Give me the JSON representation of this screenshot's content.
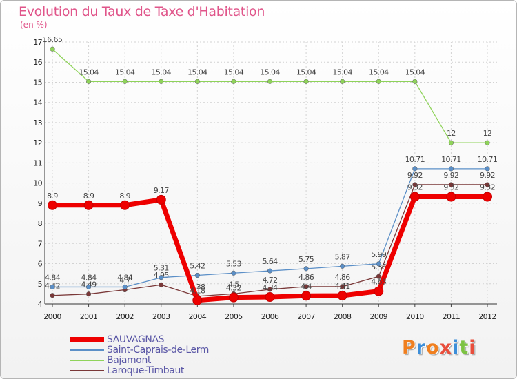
{
  "title": "Evolution du Taux de Taxe d'Habitation",
  "subtitle": "(en %)",
  "logo": {
    "letters": [
      "P",
      "r",
      "o",
      "x",
      "i",
      "t",
      "i"
    ],
    "colors": [
      "#f07f1f",
      "#3c8ed9",
      "#f07f1f",
      "#e84e3c",
      "#3c8ed9",
      "#7cc242",
      "#e84e3c"
    ]
  },
  "chart_data": {
    "type": "line",
    "title": "Evolution du Taux de Taxe d'Habitation",
    "ylabel": "(en %)",
    "xlabel": "",
    "x": [
      "2000",
      "2001",
      "2002",
      "2003",
      "2004",
      "2005",
      "2006",
      "2007",
      "2008",
      "2009",
      "2010",
      "2011",
      "2012"
    ],
    "ylim": [
      4,
      17
    ],
    "yticks": [
      4,
      5,
      6,
      7,
      8,
      9,
      10,
      11,
      12,
      13,
      14,
      15,
      16,
      17
    ],
    "series": [
      {
        "name": "Bajamont",
        "color": "#8fd35a",
        "values": [
          16.65,
          15.04,
          15.04,
          15.04,
          15.04,
          15.04,
          15.04,
          15.04,
          15.04,
          15.04,
          15.04,
          12,
          12
        ],
        "labels": [
          "16.65",
          "15.04",
          "15.04",
          "15.04",
          "15.04",
          "15.04",
          "15.04",
          "15.04",
          "15.04",
          "15.04",
          "15.04",
          "12",
          "12"
        ]
      },
      {
        "name": "Laroque-Timbaut",
        "color": "#7a3838",
        "values": [
          4.42,
          4.49,
          4.7,
          4.95,
          4.38,
          4.5,
          4.72,
          4.86,
          4.86,
          5.36,
          9.92,
          9.92,
          9.92
        ],
        "labels": [
          "4.42",
          "4.49",
          "4.7",
          "4.95",
          "4.38",
          "4.5",
          "4.72",
          "4.86",
          "4.86",
          "5.36",
          "9.92",
          "9.92",
          "9.92"
        ]
      },
      {
        "name": "Saint-Caprais-de-Lerm",
        "color": "#5b8fc7",
        "values": [
          4.84,
          4.84,
          4.84,
          5.31,
          5.42,
          5.53,
          5.64,
          5.75,
          5.87,
          5.99,
          10.71,
          10.71,
          10.71
        ],
        "labels": [
          "4.84",
          "4.84",
          "4.84",
          "5.31",
          "5.42",
          "5.53",
          "5.64",
          "5.75",
          "5.87",
          "5.99",
          "10.71",
          "10.71",
          "10.71"
        ]
      },
      {
        "name": "SAUVAGNAS",
        "color": "#ee0000",
        "values": [
          8.9,
          8.9,
          8.9,
          9.17,
          4.18,
          4.32,
          4.34,
          4.4,
          4.41,
          4.63,
          9.32,
          9.32,
          9.32
        ],
        "labels": [
          "8.9",
          "8.9",
          "8.9",
          "9.17",
          "4.18",
          "4.32",
          "4.34",
          "4.4",
          "4.41",
          "4.63",
          "9.32",
          "9.32",
          "9.32"
        ]
      }
    ],
    "legend": [
      "SAUVAGNAS",
      "Saint-Caprais-de-Lerm",
      "Bajamont",
      "Laroque-Timbaut"
    ],
    "legend_position": "bottom-left",
    "grid": true
  }
}
